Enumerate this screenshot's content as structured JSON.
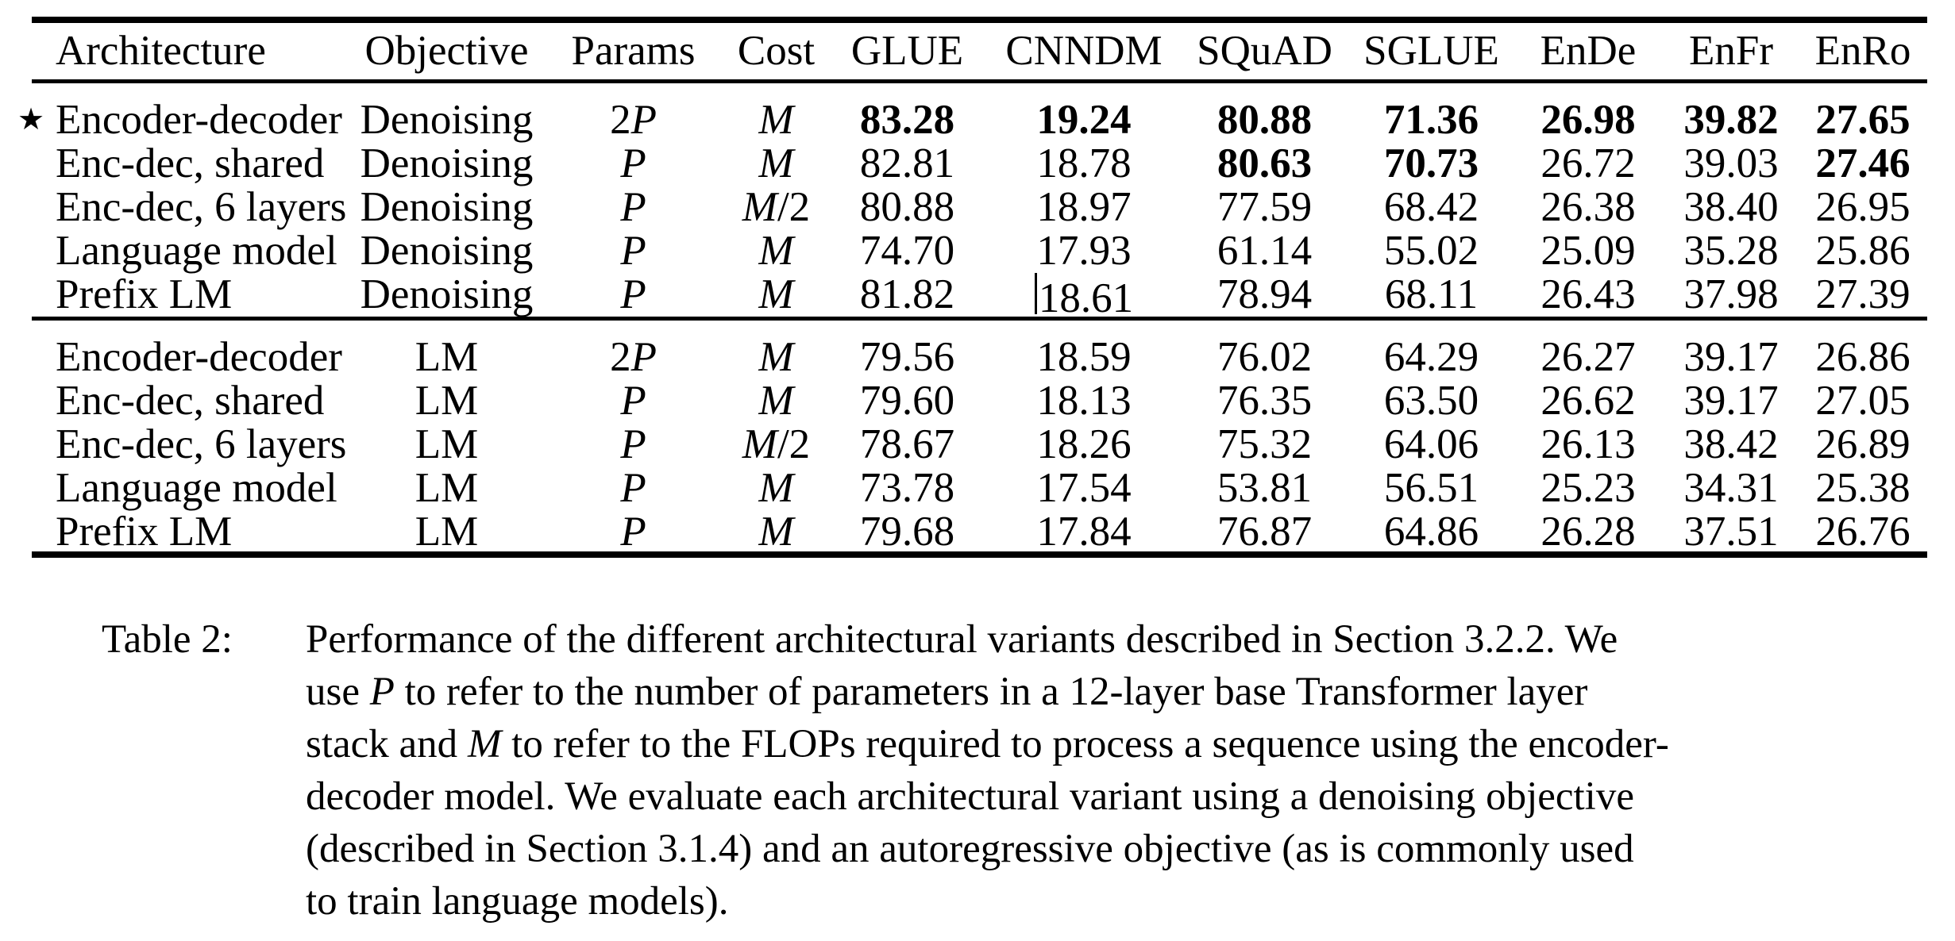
{
  "page": {
    "background": "#ffffff",
    "text_color": "#000000"
  },
  "table": {
    "star_symbol": "★",
    "columns": [
      {
        "label": "Architecture",
        "align": "left"
      },
      {
        "label": "Objective"
      },
      {
        "label": "Params",
        "math": true
      },
      {
        "label": "Cost",
        "math": true
      },
      {
        "label": "GLUE"
      },
      {
        "label": "CNNDM"
      },
      {
        "label": "SQuAD"
      },
      {
        "label": "SGLUE"
      },
      {
        "label": "EnDe"
      },
      {
        "label": "EnFr"
      },
      {
        "label": "EnRo"
      }
    ],
    "groups": [
      {
        "name": "denoising-objective-rows",
        "rows": [
          {
            "star": true,
            "cells": [
              "Encoder-decoder",
              "Denoising",
              "2P",
              "M",
              "83.28",
              "19.24",
              "80.88",
              "71.36",
              "26.98",
              "39.82",
              "27.65"
            ],
            "bold": [
              4,
              5,
              6,
              7,
              8,
              9,
              10
            ]
          },
          {
            "cells": [
              "Enc-dec, shared",
              "Denoising",
              "P",
              "M",
              "82.81",
              "18.78",
              "80.63",
              "70.73",
              "26.72",
              "39.03",
              "27.46"
            ],
            "bold": [
              6,
              7,
              10
            ]
          },
          {
            "cells": [
              "Enc-dec, 6 layers",
              "Denoising",
              "P",
              "M/2",
              "80.88",
              "18.97",
              "77.59",
              "68.42",
              "26.38",
              "38.40",
              "26.95"
            ],
            "bold": []
          },
          {
            "cells": [
              "Language model",
              "Denoising",
              "P",
              "M",
              "74.70",
              "17.93",
              "61.14",
              "55.02",
              "25.09",
              "35.28",
              "25.86"
            ],
            "bold": []
          },
          {
            "cells": [
              "Prefix LM",
              "Denoising",
              "P",
              "M",
              "81.82",
              "18.61",
              "78.94",
              "68.11",
              "26.43",
              "37.98",
              "27.39"
            ],
            "bold": [],
            "cursor_before": 5
          }
        ]
      },
      {
        "name": "lm-objective-rows",
        "rows": [
          {
            "cells": [
              "Encoder-decoder",
              "LM",
              "2P",
              "M",
              "79.56",
              "18.59",
              "76.02",
              "64.29",
              "26.27",
              "39.17",
              "26.86"
            ],
            "bold": []
          },
          {
            "cells": [
              "Enc-dec, shared",
              "LM",
              "P",
              "M",
              "79.60",
              "18.13",
              "76.35",
              "63.50",
              "26.62",
              "39.17",
              "27.05"
            ],
            "bold": []
          },
          {
            "cells": [
              "Enc-dec, 6 layers",
              "LM",
              "P",
              "M/2",
              "78.67",
              "18.26",
              "75.32",
              "64.06",
              "26.13",
              "38.42",
              "26.89"
            ],
            "bold": []
          },
          {
            "cells": [
              "Language model",
              "LM",
              "P",
              "M",
              "73.78",
              "17.54",
              "53.81",
              "56.51",
              "25.23",
              "34.31",
              "25.38"
            ],
            "bold": []
          },
          {
            "cells": [
              "Prefix LM",
              "LM",
              "P",
              "M",
              "79.68",
              "17.84",
              "76.87",
              "64.86",
              "26.28",
              "37.51",
              "26.76"
            ],
            "bold": []
          }
        ]
      }
    ]
  },
  "caption": {
    "label": "Table 2:",
    "lines": [
      [
        {
          "t": "Performance of the different architectural variants described in Section 3.2.2. We"
        }
      ],
      [
        {
          "t": "use "
        },
        {
          "t": "P",
          "i": 1
        },
        {
          "t": " to refer to the number of parameters in a 12-layer base Transformer layer"
        }
      ],
      [
        {
          "t": "stack and "
        },
        {
          "t": "M",
          "i": 1
        },
        {
          "t": " to refer to the FLOPs required to process a sequence using the encoder-"
        }
      ],
      [
        {
          "t": "decoder model. We evaluate each architectural variant using a denoising objective"
        }
      ],
      [
        {
          "t": "(described in Section 3.1.4) and an autoregressive objective (as is commonly used"
        }
      ],
      [
        {
          "t": "to train language models)."
        }
      ]
    ]
  }
}
